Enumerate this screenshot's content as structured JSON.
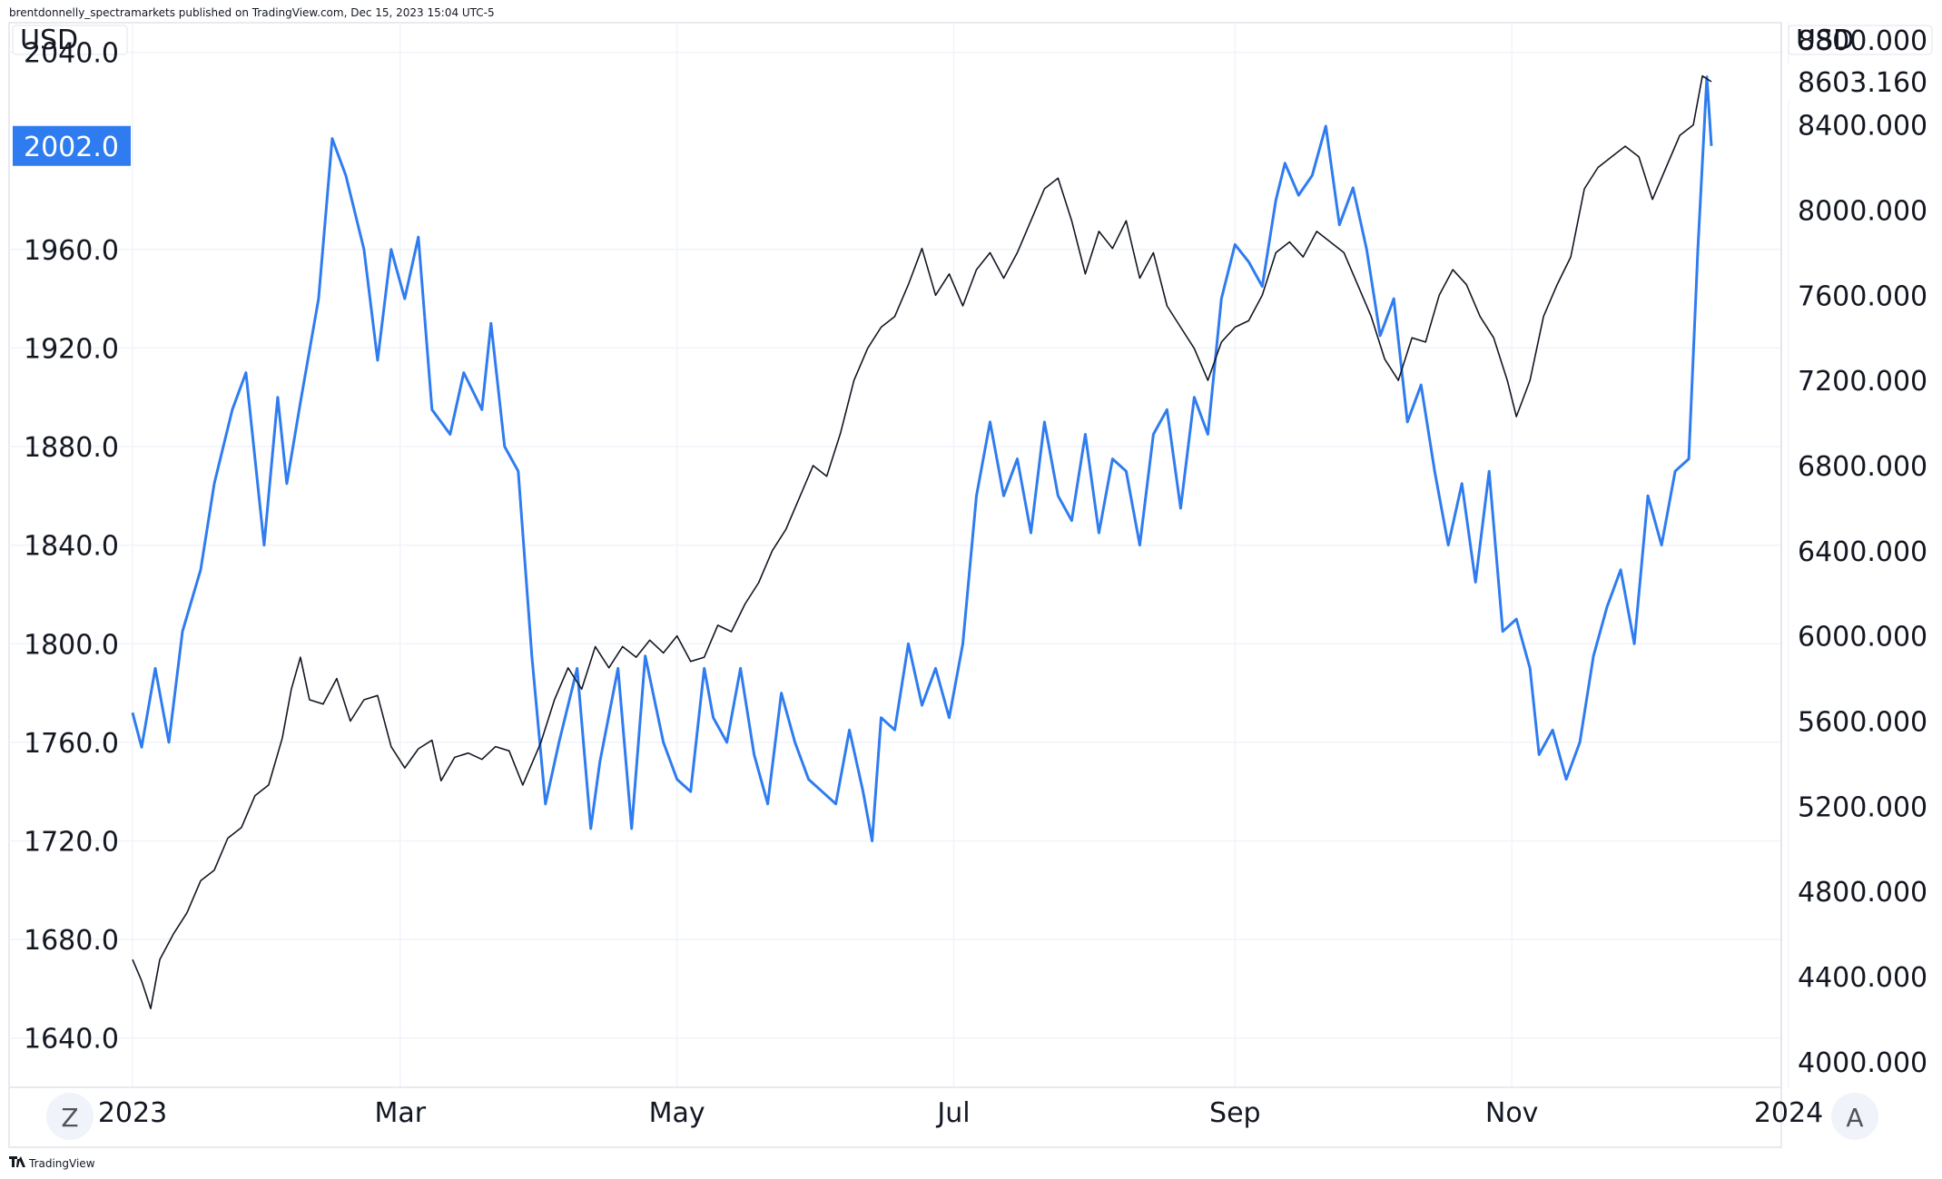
{
  "header": {
    "publisher_text": "brentdonnelly_spectramarkets published on TradingView.com, Dec 15, 2023 15:04 UTC-5"
  },
  "footer": {
    "brand_text": "TradingView",
    "left_button": "Z",
    "right_button": "A"
  },
  "colors": {
    "series_blue": "#2f7cf0",
    "series_black": "#131722",
    "badge_blue": "#2f7cf0",
    "badge_black": "#131722"
  },
  "chart_data": {
    "type": "line",
    "x_ticks": [
      "2023",
      "Mar",
      "May",
      "Jul",
      "Sep",
      "Nov",
      "2024"
    ],
    "left_axis": {
      "unit": "USD",
      "ticks": [
        "2040.0",
        "1960.0",
        "1920.0",
        "1880.0",
        "1840.0",
        "1800.0",
        "1760.0",
        "1720.0",
        "1680.0",
        "1640.0"
      ],
      "range": [
        1620,
        2052
      ]
    },
    "right_axis": {
      "unit": "USD",
      "ticks": [
        "8800.000",
        "8400.000",
        "8000.000",
        "7600.000",
        "7200.000",
        "6800.000",
        "6400.000",
        "6000.000",
        "5600.000",
        "5200.000",
        "4800.000",
        "4400.000",
        "4000.000"
      ],
      "range": [
        3880,
        8880
      ]
    },
    "last_value_labels": {
      "left": "2002.0",
      "right": "8603.160"
    },
    "series": [
      {
        "axis": "left",
        "color": "#2f7cf0",
        "points": [
          [
            "2023-01-01",
            1772
          ],
          [
            "2023-01-03",
            1758
          ],
          [
            "2023-01-06",
            1790
          ],
          [
            "2023-01-09",
            1760
          ],
          [
            "2023-01-12",
            1805
          ],
          [
            "2023-01-16",
            1830
          ],
          [
            "2023-01-19",
            1865
          ],
          [
            "2023-01-23",
            1895
          ],
          [
            "2023-01-26",
            1910
          ],
          [
            "2023-01-30",
            1840
          ],
          [
            "2023-02-02",
            1900
          ],
          [
            "2023-02-04",
            1865
          ],
          [
            "2023-02-07",
            1898
          ],
          [
            "2023-02-11",
            1940
          ],
          [
            "2023-02-14",
            2005
          ],
          [
            "2023-02-17",
            1990
          ],
          [
            "2023-02-21",
            1960
          ],
          [
            "2023-02-24",
            1915
          ],
          [
            "2023-02-27",
            1960
          ],
          [
            "2023-03-02",
            1940
          ],
          [
            "2023-03-05",
            1965
          ],
          [
            "2023-03-08",
            1895
          ],
          [
            "2023-03-12",
            1885
          ],
          [
            "2023-03-15",
            1910
          ],
          [
            "2023-03-19",
            1895
          ],
          [
            "2023-03-21",
            1930
          ],
          [
            "2023-03-24",
            1880
          ],
          [
            "2023-03-27",
            1870
          ],
          [
            "2023-03-30",
            1795
          ],
          [
            "2023-04-02",
            1735
          ],
          [
            "2023-04-05",
            1760
          ],
          [
            "2023-04-09",
            1790
          ],
          [
            "2023-04-12",
            1725
          ],
          [
            "2023-04-14",
            1752
          ],
          [
            "2023-04-18",
            1790
          ],
          [
            "2023-04-21",
            1725
          ],
          [
            "2023-04-24",
            1795
          ],
          [
            "2023-04-28",
            1760
          ],
          [
            "2023-05-01",
            1745
          ],
          [
            "2023-05-04",
            1740
          ],
          [
            "2023-05-07",
            1790
          ],
          [
            "2023-05-09",
            1770
          ],
          [
            "2023-05-12",
            1760
          ],
          [
            "2023-05-15",
            1790
          ],
          [
            "2023-05-18",
            1755
          ],
          [
            "2023-05-21",
            1735
          ],
          [
            "2023-05-24",
            1780
          ],
          [
            "2023-05-27",
            1760
          ],
          [
            "2023-05-30",
            1745
          ],
          [
            "2023-06-02",
            1740
          ],
          [
            "2023-06-05",
            1735
          ],
          [
            "2023-06-08",
            1765
          ],
          [
            "2023-06-11",
            1740
          ],
          [
            "2023-06-13",
            1720
          ],
          [
            "2023-06-15",
            1770
          ],
          [
            "2023-06-18",
            1765
          ],
          [
            "2023-06-21",
            1800
          ],
          [
            "2023-06-24",
            1775
          ],
          [
            "2023-06-27",
            1790
          ],
          [
            "2023-06-30",
            1770
          ],
          [
            "2023-07-03",
            1800
          ],
          [
            "2023-07-06",
            1860
          ],
          [
            "2023-07-09",
            1890
          ],
          [
            "2023-07-12",
            1860
          ],
          [
            "2023-07-15",
            1875
          ],
          [
            "2023-07-18",
            1845
          ],
          [
            "2023-07-21",
            1890
          ],
          [
            "2023-07-24",
            1860
          ],
          [
            "2023-07-27",
            1850
          ],
          [
            "2023-07-30",
            1885
          ],
          [
            "2023-08-02",
            1845
          ],
          [
            "2023-08-05",
            1875
          ],
          [
            "2023-08-08",
            1870
          ],
          [
            "2023-08-11",
            1840
          ],
          [
            "2023-08-14",
            1885
          ],
          [
            "2023-08-17",
            1895
          ],
          [
            "2023-08-20",
            1855
          ],
          [
            "2023-08-23",
            1900
          ],
          [
            "2023-08-26",
            1885
          ],
          [
            "2023-08-29",
            1940
          ],
          [
            "2023-09-01",
            1962
          ],
          [
            "2023-09-04",
            1955
          ],
          [
            "2023-09-07",
            1945
          ],
          [
            "2023-09-10",
            1980
          ],
          [
            "2023-09-12",
            1995
          ],
          [
            "2023-09-15",
            1982
          ],
          [
            "2023-09-18",
            1990
          ],
          [
            "2023-09-21",
            2010
          ],
          [
            "2023-09-24",
            1970
          ],
          [
            "2023-09-27",
            1985
          ],
          [
            "2023-09-30",
            1960
          ],
          [
            "2023-10-03",
            1925
          ],
          [
            "2023-10-06",
            1940
          ],
          [
            "2023-10-09",
            1890
          ],
          [
            "2023-10-12",
            1905
          ],
          [
            "2023-10-15",
            1870
          ],
          [
            "2023-10-18",
            1840
          ],
          [
            "2023-10-21",
            1865
          ],
          [
            "2023-10-24",
            1825
          ],
          [
            "2023-10-27",
            1870
          ],
          [
            "2023-10-30",
            1805
          ],
          [
            "2023-11-02",
            1810
          ],
          [
            "2023-11-05",
            1790
          ],
          [
            "2023-11-07",
            1755
          ],
          [
            "2023-11-10",
            1765
          ],
          [
            "2023-11-13",
            1745
          ],
          [
            "2023-11-16",
            1760
          ],
          [
            "2023-11-19",
            1795
          ],
          [
            "2023-11-22",
            1815
          ],
          [
            "2023-11-25",
            1830
          ],
          [
            "2023-11-28",
            1800
          ],
          [
            "2023-12-01",
            1860
          ],
          [
            "2023-12-04",
            1840
          ],
          [
            "2023-12-07",
            1870
          ],
          [
            "2023-12-10",
            1875
          ],
          [
            "2023-12-12",
            1960
          ],
          [
            "2023-12-14",
            2030
          ],
          [
            "2023-12-15",
            2002
          ]
        ]
      },
      {
        "axis": "right",
        "color": "#131722",
        "points": [
          [
            "2023-01-01",
            4480
          ],
          [
            "2023-01-03",
            4380
          ],
          [
            "2023-01-05",
            4250
          ],
          [
            "2023-01-07",
            4480
          ],
          [
            "2023-01-10",
            4600
          ],
          [
            "2023-01-13",
            4700
          ],
          [
            "2023-01-16",
            4850
          ],
          [
            "2023-01-19",
            4900
          ],
          [
            "2023-01-22",
            5050
          ],
          [
            "2023-01-25",
            5100
          ],
          [
            "2023-01-28",
            5250
          ],
          [
            "2023-01-31",
            5300
          ],
          [
            "2023-02-03",
            5520
          ],
          [
            "2023-02-05",
            5750
          ],
          [
            "2023-02-07",
            5900
          ],
          [
            "2023-02-09",
            5700
          ],
          [
            "2023-02-12",
            5680
          ],
          [
            "2023-02-15",
            5800
          ],
          [
            "2023-02-18",
            5600
          ],
          [
            "2023-02-21",
            5700
          ],
          [
            "2023-02-24",
            5720
          ],
          [
            "2023-02-27",
            5480
          ],
          [
            "2023-03-02",
            5380
          ],
          [
            "2023-03-05",
            5470
          ],
          [
            "2023-03-08",
            5510
          ],
          [
            "2023-03-10",
            5320
          ],
          [
            "2023-03-13",
            5430
          ],
          [
            "2023-03-16",
            5450
          ],
          [
            "2023-03-19",
            5420
          ],
          [
            "2023-03-22",
            5480
          ],
          [
            "2023-03-25",
            5460
          ],
          [
            "2023-03-28",
            5300
          ],
          [
            "2023-04-01",
            5500
          ],
          [
            "2023-04-04",
            5700
          ],
          [
            "2023-04-07",
            5850
          ],
          [
            "2023-04-10",
            5750
          ],
          [
            "2023-04-13",
            5950
          ],
          [
            "2023-04-16",
            5850
          ],
          [
            "2023-04-19",
            5950
          ],
          [
            "2023-04-22",
            5900
          ],
          [
            "2023-04-25",
            5980
          ],
          [
            "2023-04-28",
            5920
          ],
          [
            "2023-05-01",
            6000
          ],
          [
            "2023-05-04",
            5880
          ],
          [
            "2023-05-07",
            5900
          ],
          [
            "2023-05-10",
            6050
          ],
          [
            "2023-05-13",
            6020
          ],
          [
            "2023-05-16",
            6150
          ],
          [
            "2023-05-19",
            6250
          ],
          [
            "2023-05-22",
            6400
          ],
          [
            "2023-05-25",
            6500
          ],
          [
            "2023-05-28",
            6650
          ],
          [
            "2023-05-31",
            6800
          ],
          [
            "2023-06-03",
            6750
          ],
          [
            "2023-06-06",
            6950
          ],
          [
            "2023-06-09",
            7200
          ],
          [
            "2023-06-12",
            7350
          ],
          [
            "2023-06-15",
            7450
          ],
          [
            "2023-06-18",
            7500
          ],
          [
            "2023-06-21",
            7650
          ],
          [
            "2023-06-24",
            7820
          ],
          [
            "2023-06-27",
            7600
          ],
          [
            "2023-06-30",
            7700
          ],
          [
            "2023-07-03",
            7550
          ],
          [
            "2023-07-06",
            7720
          ],
          [
            "2023-07-09",
            7800
          ],
          [
            "2023-07-12",
            7680
          ],
          [
            "2023-07-15",
            7800
          ],
          [
            "2023-07-18",
            7950
          ],
          [
            "2023-07-21",
            8100
          ],
          [
            "2023-07-24",
            8150
          ],
          [
            "2023-07-27",
            7950
          ],
          [
            "2023-07-30",
            7700
          ],
          [
            "2023-08-02",
            7900
          ],
          [
            "2023-08-05",
            7820
          ],
          [
            "2023-08-08",
            7950
          ],
          [
            "2023-08-11",
            7680
          ],
          [
            "2023-08-14",
            7800
          ],
          [
            "2023-08-17",
            7550
          ],
          [
            "2023-08-20",
            7450
          ],
          [
            "2023-08-23",
            7350
          ],
          [
            "2023-08-26",
            7200
          ],
          [
            "2023-08-29",
            7380
          ],
          [
            "2023-09-01",
            7450
          ],
          [
            "2023-09-04",
            7480
          ],
          [
            "2023-09-07",
            7600
          ],
          [
            "2023-09-10",
            7800
          ],
          [
            "2023-09-13",
            7850
          ],
          [
            "2023-09-16",
            7780
          ],
          [
            "2023-09-19",
            7900
          ],
          [
            "2023-09-22",
            7850
          ],
          [
            "2023-09-25",
            7800
          ],
          [
            "2023-09-28",
            7650
          ],
          [
            "2023-10-01",
            7500
          ],
          [
            "2023-10-04",
            7300
          ],
          [
            "2023-10-07",
            7200
          ],
          [
            "2023-10-10",
            7400
          ],
          [
            "2023-10-13",
            7380
          ],
          [
            "2023-10-16",
            7600
          ],
          [
            "2023-10-19",
            7720
          ],
          [
            "2023-10-22",
            7650
          ],
          [
            "2023-10-25",
            7500
          ],
          [
            "2023-10-28",
            7400
          ],
          [
            "2023-10-31",
            7200
          ],
          [
            "2023-11-02",
            7030
          ],
          [
            "2023-11-05",
            7200
          ],
          [
            "2023-11-08",
            7500
          ],
          [
            "2023-11-11",
            7650
          ],
          [
            "2023-11-14",
            7780
          ],
          [
            "2023-11-17",
            8100
          ],
          [
            "2023-11-20",
            8200
          ],
          [
            "2023-11-23",
            8250
          ],
          [
            "2023-11-26",
            8300
          ],
          [
            "2023-11-29",
            8250
          ],
          [
            "2023-12-02",
            8050
          ],
          [
            "2023-12-05",
            8200
          ],
          [
            "2023-12-08",
            8350
          ],
          [
            "2023-12-11",
            8400
          ],
          [
            "2023-12-13",
            8630
          ],
          [
            "2023-12-15",
            8603
          ]
        ]
      }
    ]
  }
}
